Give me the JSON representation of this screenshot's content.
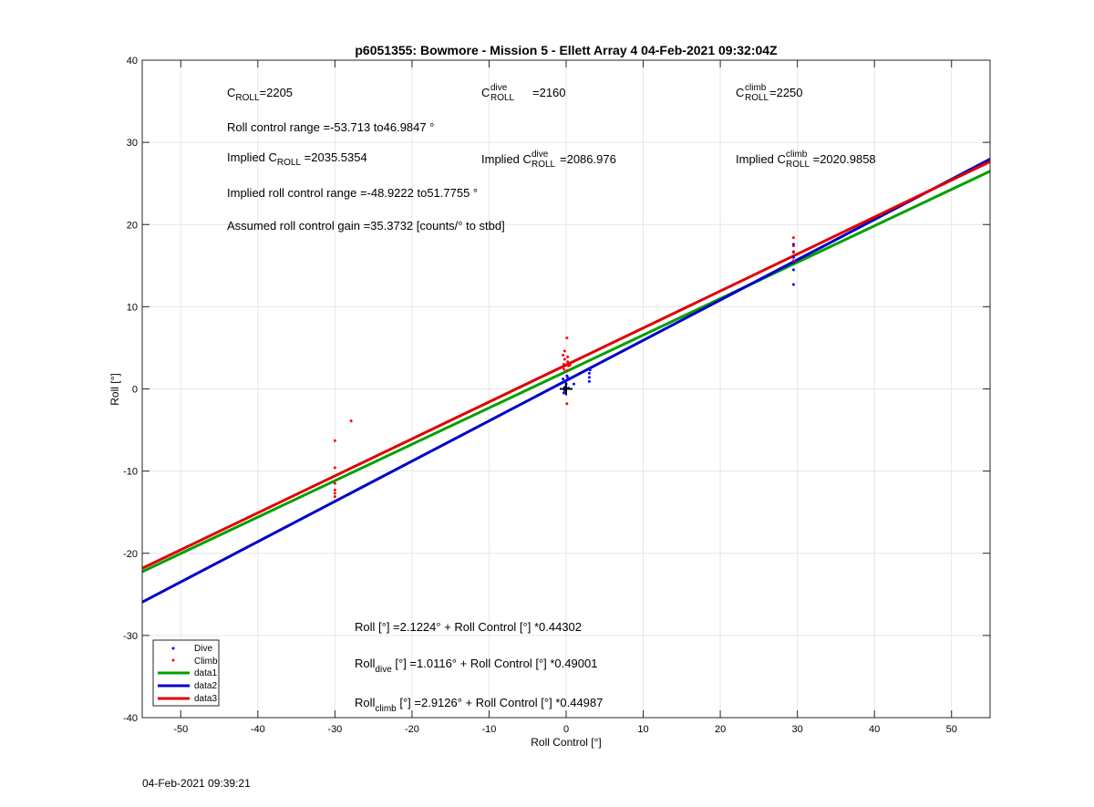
{
  "chart_data": {
    "type": "scatter",
    "title": "p6051355: Bowmore - Mission 5 - Ellett Array 4 04-Feb-2021 09:32:04Z",
    "xlabel": "Roll Control [°]",
    "ylabel": "Roll [°]",
    "xlim": [
      -55,
      55
    ],
    "ylim": [
      -40,
      40
    ],
    "xticks": [
      -50,
      -40,
      -30,
      -20,
      -10,
      0,
      10,
      20,
      30,
      40,
      50
    ],
    "yticks": [
      -40,
      -30,
      -20,
      -10,
      0,
      10,
      20,
      30,
      40
    ],
    "grid": true,
    "legend_position": "bottom-left",
    "series": [
      {
        "name": "Dive",
        "kind": "points",
        "color": "#0000ff",
        "points": [
          [
            -0.3,
            -0.5
          ],
          [
            -0.2,
            0.2
          ],
          [
            0.0,
            0.6
          ],
          [
            -0.4,
            1.2
          ],
          [
            0.1,
            1.6
          ],
          [
            -0.1,
            0.9
          ],
          [
            0.3,
            0.1
          ],
          [
            -0.2,
            -0.2
          ],
          [
            0.2,
            1.4
          ],
          [
            1.0,
            0.6
          ],
          [
            3.0,
            0.9
          ],
          [
            3.0,
            1.4
          ],
          [
            3.0,
            1.9
          ],
          [
            3.1,
            2.3
          ],
          [
            29.5,
            12.7
          ],
          [
            29.5,
            14.5
          ],
          [
            29.5,
            15.4
          ],
          [
            29.5,
            16.0
          ],
          [
            29.5,
            16.7
          ],
          [
            29.5,
            17.6
          ]
        ]
      },
      {
        "name": "Climb",
        "kind": "points",
        "color": "#ff0000",
        "points": [
          [
            -30.0,
            -6.3
          ],
          [
            -30.0,
            -9.6
          ],
          [
            -30.0,
            -11.5
          ],
          [
            -30.0,
            -12.3
          ],
          [
            -30.0,
            -12.7
          ],
          [
            -30.0,
            -13.1
          ],
          [
            -27.9,
            -3.9
          ],
          [
            -0.3,
            2.4
          ],
          [
            -0.3,
            3.0
          ],
          [
            -0.2,
            3.6
          ],
          [
            -0.4,
            4.1
          ],
          [
            -0.2,
            4.6
          ],
          [
            0.1,
            2.2
          ],
          [
            0.2,
            3.3
          ],
          [
            0.1,
            6.2
          ],
          [
            0.3,
            2.8
          ],
          [
            0.5,
            2.9
          ],
          [
            0.2,
            3.9
          ],
          [
            0.1,
            -1.8
          ],
          [
            29.5,
            15.6
          ],
          [
            29.5,
            16.6
          ],
          [
            29.5,
            17.4
          ],
          [
            29.5,
            18.4
          ]
        ]
      },
      {
        "name": "data1",
        "kind": "line",
        "color": "#00a000",
        "intercept": 2.1224,
        "slope": 0.44302
      },
      {
        "name": "data2",
        "kind": "line",
        "color": "#0000c8",
        "intercept": 1.0116,
        "slope": 0.49001
      },
      {
        "name": "data3",
        "kind": "line",
        "color": "#e00000",
        "intercept": 2.9126,
        "slope": 0.44987
      }
    ],
    "crosshair": [
      0,
      0
    ]
  },
  "annotations": {
    "c_roll": {
      "main": "C",
      "sub": "ROLL",
      "value": "=2205"
    },
    "c_roll_dive": {
      "main": "C",
      "sup": "dive",
      "sub": "ROLL",
      "value": "=2160"
    },
    "c_roll_climb": {
      "main": "C",
      "sup": "climb",
      "sub": "ROLL",
      "value": "=2250"
    },
    "roll_control_range": "Roll control range =-53.713 to46.9847 °",
    "implied_c_roll": {
      "prefix": "Implied C",
      "sub": "ROLL",
      "value": " =2035.5354"
    },
    "implied_c_roll_dive": {
      "prefix": "Implied C",
      "sup": "dive",
      "sub": "ROLL",
      "value": "=2086.976"
    },
    "implied_c_roll_climb": {
      "prefix": "Implied C",
      "sup": "climb",
      "sub": "ROLL",
      "value": " =2020.9858"
    },
    "implied_range": "Implied roll control range =-48.9222 to51.7755 °",
    "gain": "Assumed roll control gain =35.3732 [counts/° to stbd]",
    "fit_all": "Roll [°] =2.1224° + Roll Control [°] *0.44302",
    "fit_dive": {
      "prefix": "Roll",
      "sub": "dive",
      "rest": " [°] =1.0116° + Roll Control [°] *0.49001"
    },
    "fit_climb": {
      "prefix": "Roll",
      "sub": "climb",
      "rest": " [°] =2.9126° + Roll Control [°] *0.44987"
    }
  },
  "footer": {
    "timestamp": "04-Feb-2021 09:39:21"
  }
}
